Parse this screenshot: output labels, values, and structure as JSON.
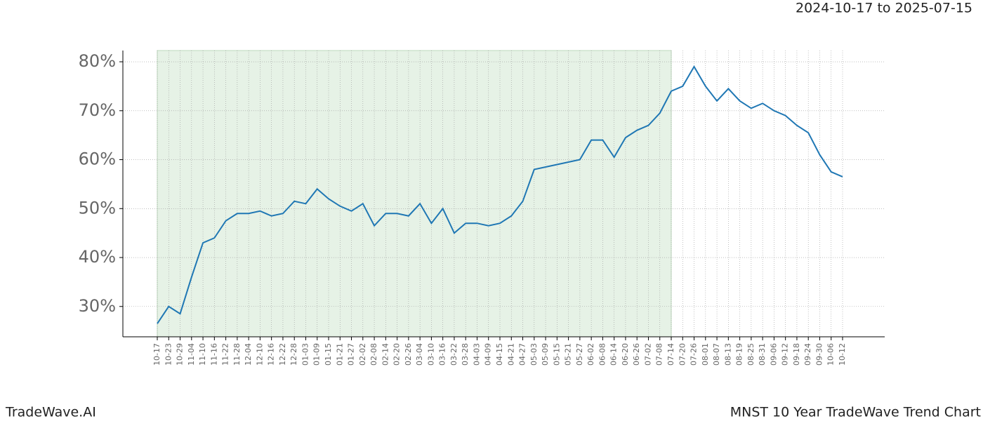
{
  "chart_data": {
    "type": "line",
    "title": "MNST 10 Year TradeWave Trend Chart",
    "subtitle": "2024-10-17 to 2025-07-15",
    "brand": "TradeWave.AI",
    "categories": [
      "10-17",
      "10-23",
      "10-29",
      "11-04",
      "11-10",
      "11-16",
      "11-22",
      "11-28",
      "12-04",
      "12-10",
      "12-16",
      "12-22",
      "12-28",
      "01-03",
      "01-09",
      "01-15",
      "01-21",
      "01-27",
      "02-02",
      "02-08",
      "02-14",
      "02-20",
      "02-26",
      "03-04",
      "03-10",
      "03-16",
      "03-22",
      "03-28",
      "04-03",
      "04-09",
      "04-15",
      "04-21",
      "04-27",
      "05-03",
      "05-09",
      "05-15",
      "05-21",
      "05-27",
      "06-02",
      "06-08",
      "06-14",
      "06-20",
      "06-26",
      "07-02",
      "07-08",
      "07-14",
      "07-20",
      "07-26",
      "08-01",
      "08-07",
      "08-13",
      "08-19",
      "08-25",
      "08-31",
      "09-06",
      "09-12",
      "09-18",
      "09-24",
      "09-30",
      "10-06",
      "10-12"
    ],
    "series": [
      {
        "color": "#1f77b4",
        "values": [
          26.5,
          30,
          28.5,
          36,
          43,
          44,
          47.5,
          49,
          49,
          49.5,
          48.5,
          49,
          51.5,
          51,
          54,
          52,
          50.5,
          49.5,
          51,
          46.5,
          49,
          49,
          48.5,
          51,
          47,
          50,
          45,
          47,
          47,
          46.5,
          47,
          48.5,
          51.5,
          58,
          58.5,
          59,
          59.5,
          60,
          64,
          64,
          60.5,
          64.5,
          66,
          67,
          69.5,
          74,
          75,
          79,
          75,
          72,
          74.5,
          72,
          70.5,
          71.5,
          70,
          69,
          67,
          65.5,
          61,
          57.5,
          56.5
        ]
      }
    ],
    "highlight": {
      "start": 0,
      "end": 45,
      "color": "#e6f2e6"
    },
    "ylim": [
      23.8,
      82.3
    ],
    "yticks": [
      {
        "value": 30,
        "label": "30%"
      },
      {
        "value": 40,
        "label": "40%"
      },
      {
        "value": 50,
        "label": "50%"
      },
      {
        "value": 60,
        "label": "60%"
      },
      {
        "value": 70,
        "label": "70%"
      },
      {
        "value": 80,
        "label": "80%"
      }
    ],
    "grid": true
  }
}
